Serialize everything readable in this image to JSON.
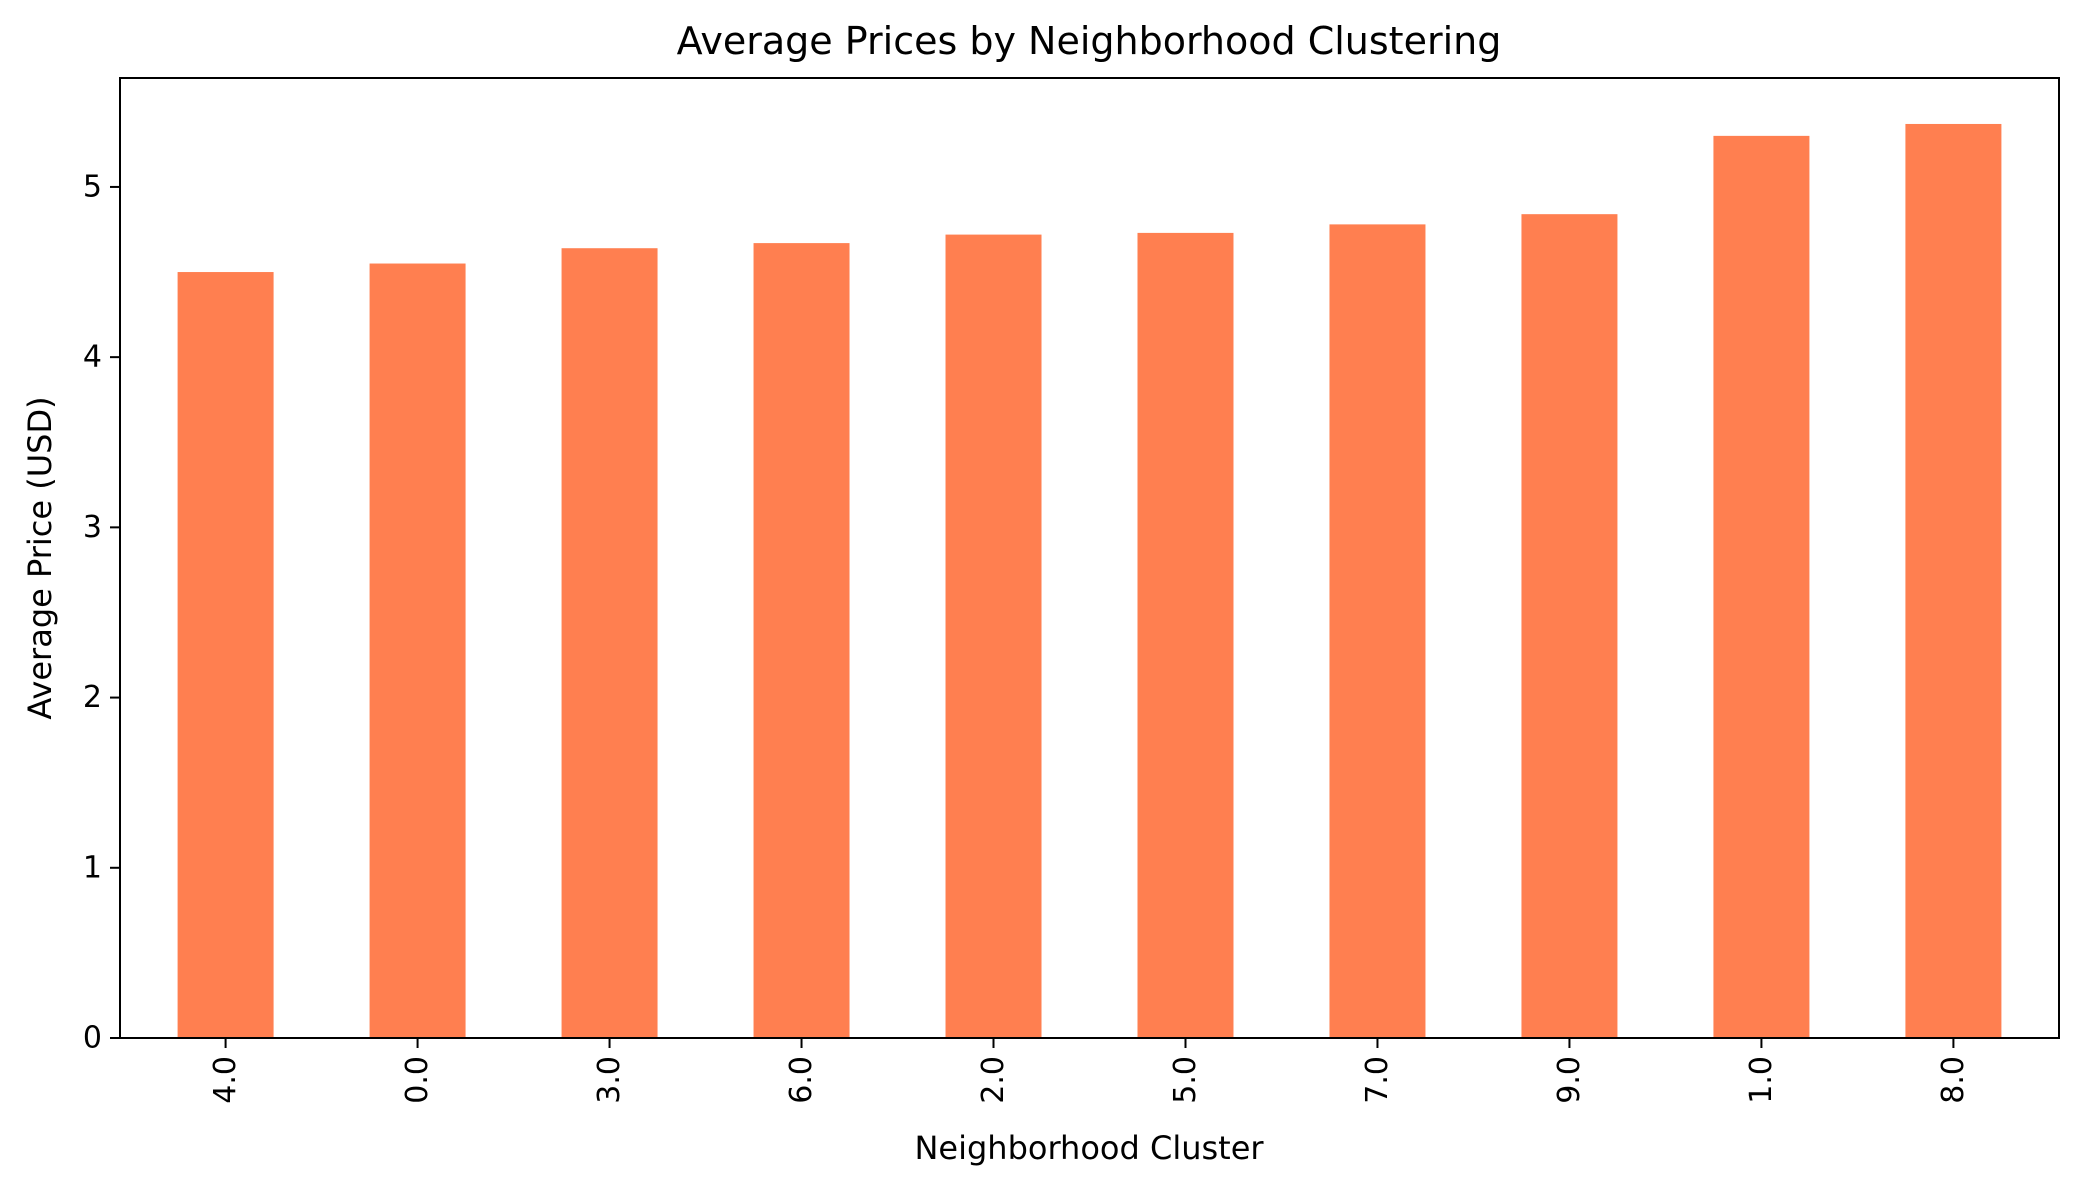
{
  "chart_data": {
    "type": "bar",
    "title": "Average Prices by Neighborhood Clustering",
    "xlabel": "Neighborhood Cluster",
    "ylabel": "Average Price (USD)",
    "categories": [
      "4.0",
      "0.0",
      "3.0",
      "6.0",
      "2.0",
      "5.0",
      "7.0",
      "9.0",
      "1.0",
      "8.0"
    ],
    "values": [
      4.5,
      4.55,
      4.64,
      4.67,
      4.72,
      4.73,
      4.78,
      4.84,
      5.3,
      5.37
    ],
    "ylim": [
      0,
      5.64
    ],
    "yticks": [
      0,
      1,
      2,
      3,
      4,
      5
    ],
    "grid": false,
    "bar_color": "#ff7f50",
    "x_tick_rotation": "vertical"
  }
}
